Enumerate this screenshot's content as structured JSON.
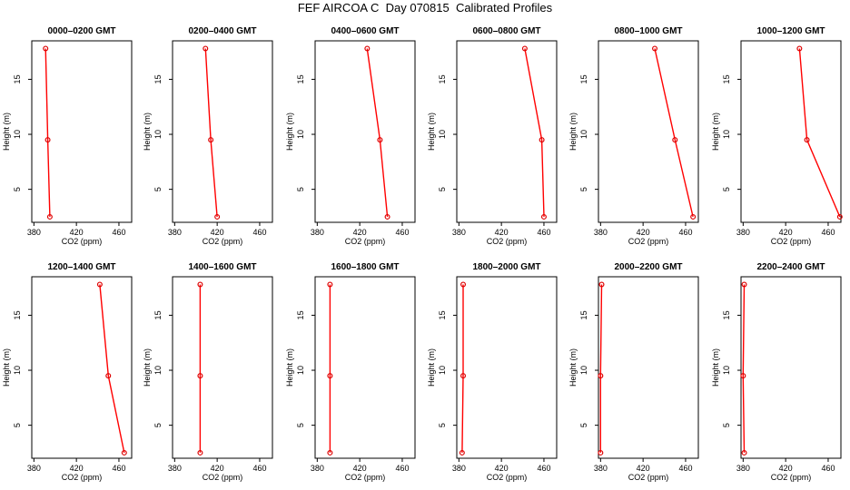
{
  "title": "FEF AIRCOA C  Day 070815  Calibrated Profiles",
  "colors": {
    "line": "#ff0000",
    "point": "#dd0000",
    "axis": "#000000"
  },
  "chart_data": [
    {
      "type": "line",
      "title": "0000–0200 GMT",
      "xlabel": "CO2 (ppm)",
      "ylabel": "Height (m)",
      "xlim": [
        378,
        472
      ],
      "ylim": [
        2,
        18.5
      ],
      "xticks": [
        380,
        420,
        460
      ],
      "yticks": [
        5,
        10,
        15
      ],
      "series": [
        {
          "x": [
            395,
            393,
            391
          ],
          "y": [
            2.5,
            9.5,
            17.8
          ]
        }
      ]
    },
    {
      "type": "line",
      "title": "0200–0400 GMT",
      "xlabel": "CO2 (ppm)",
      "ylabel": "Height (m)",
      "xlim": [
        378,
        472
      ],
      "ylim": [
        2,
        18.5
      ],
      "xticks": [
        380,
        420,
        460
      ],
      "yticks": [
        5,
        10,
        15
      ],
      "series": [
        {
          "x": [
            420,
            414,
            409
          ],
          "y": [
            2.5,
            9.5,
            17.8
          ]
        }
      ]
    },
    {
      "type": "line",
      "title": "0400–0600 GMT",
      "xlabel": "CO2 (ppm)",
      "ylabel": "Height (m)",
      "xlim": [
        378,
        472
      ],
      "ylim": [
        2,
        18.5
      ],
      "xticks": [
        380,
        420,
        460
      ],
      "yticks": [
        5,
        10,
        15
      ],
      "series": [
        {
          "x": [
            446,
            439,
            427
          ],
          "y": [
            2.5,
            9.5,
            17.8
          ]
        }
      ]
    },
    {
      "type": "line",
      "title": "0600–0800 GMT",
      "xlabel": "CO2 (ppm)",
      "ylabel": "Height (m)",
      "xlim": [
        378,
        472
      ],
      "ylim": [
        2,
        18.5
      ],
      "xticks": [
        380,
        420,
        460
      ],
      "yticks": [
        5,
        10,
        15
      ],
      "series": [
        {
          "x": [
            460,
            458,
            442
          ],
          "y": [
            2.5,
            9.5,
            17.8
          ]
        }
      ]
    },
    {
      "type": "line",
      "title": "0800–1000 GMT",
      "xlabel": "CO2 (ppm)",
      "ylabel": "Height (m)",
      "xlim": [
        378,
        472
      ],
      "ylim": [
        2,
        18.5
      ],
      "xticks": [
        380,
        420,
        460
      ],
      "yticks": [
        5,
        10,
        15
      ],
      "series": [
        {
          "x": [
            467,
            450,
            431
          ],
          "y": [
            2.5,
            9.5,
            17.8
          ]
        }
      ]
    },
    {
      "type": "line",
      "title": "1000–1200 GMT",
      "xlabel": "CO2 (ppm)",
      "ylabel": "Height (m)",
      "xlim": [
        378,
        472
      ],
      "ylim": [
        2,
        18.5
      ],
      "xticks": [
        380,
        420,
        460
      ],
      "yticks": [
        5,
        10,
        15
      ],
      "series": [
        {
          "x": [
            471,
            440,
            433
          ],
          "y": [
            2.5,
            9.5,
            17.8
          ]
        }
      ]
    },
    {
      "type": "line",
      "title": "1200–1400 GMT",
      "xlabel": "CO2 (ppm)",
      "ylabel": "Height (m)",
      "xlim": [
        378,
        472
      ],
      "ylim": [
        2,
        18.5
      ],
      "xticks": [
        380,
        420,
        460
      ],
      "yticks": [
        5,
        10,
        15
      ],
      "series": [
        {
          "x": [
            465,
            450,
            442
          ],
          "y": [
            2.5,
            9.5,
            17.8
          ]
        }
      ]
    },
    {
      "type": "line",
      "title": "1400–1600 GMT",
      "xlabel": "CO2 (ppm)",
      "ylabel": "Height (m)",
      "xlim": [
        378,
        472
      ],
      "ylim": [
        2,
        18.5
      ],
      "xticks": [
        380,
        420,
        460
      ],
      "yticks": [
        5,
        10,
        15
      ],
      "series": [
        {
          "x": [
            404,
            404,
            404
          ],
          "y": [
            2.5,
            9.5,
            17.8
          ]
        }
      ]
    },
    {
      "type": "line",
      "title": "1600–1800 GMT",
      "xlabel": "CO2 (ppm)",
      "ylabel": "Height (m)",
      "xlim": [
        378,
        472
      ],
      "ylim": [
        2,
        18.5
      ],
      "xticks": [
        380,
        420,
        460
      ],
      "yticks": [
        5,
        10,
        15
      ],
      "series": [
        {
          "x": [
            392,
            392,
            392
          ],
          "y": [
            2.5,
            9.5,
            17.8
          ]
        }
      ]
    },
    {
      "type": "line",
      "title": "1800–2000 GMT",
      "xlabel": "CO2 (ppm)",
      "ylabel": "Height (m)",
      "xlim": [
        378,
        472
      ],
      "ylim": [
        2,
        18.5
      ],
      "xticks": [
        380,
        420,
        460
      ],
      "yticks": [
        5,
        10,
        15
      ],
      "series": [
        {
          "x": [
            383,
            384,
            384
          ],
          "y": [
            2.5,
            9.5,
            17.8
          ]
        }
      ]
    },
    {
      "type": "line",
      "title": "2000–2200 GMT",
      "xlabel": "CO2 (ppm)",
      "ylabel": "Height (m)",
      "xlim": [
        378,
        472
      ],
      "ylim": [
        2,
        18.5
      ],
      "xticks": [
        380,
        420,
        460
      ],
      "yticks": [
        5,
        10,
        15
      ],
      "series": [
        {
          "x": [
            380,
            380,
            381
          ],
          "y": [
            2.5,
            9.5,
            17.8
          ]
        }
      ]
    },
    {
      "type": "line",
      "title": "2200–2400 GMT",
      "xlabel": "CO2 (ppm)",
      "ylabel": "Height (m)",
      "xlim": [
        378,
        472
      ],
      "ylim": [
        2,
        18.5
      ],
      "xticks": [
        380,
        420,
        460
      ],
      "yticks": [
        5,
        10,
        15
      ],
      "series": [
        {
          "x": [
            381,
            380,
            381
          ],
          "y": [
            2.5,
            9.5,
            17.8
          ]
        }
      ]
    }
  ]
}
